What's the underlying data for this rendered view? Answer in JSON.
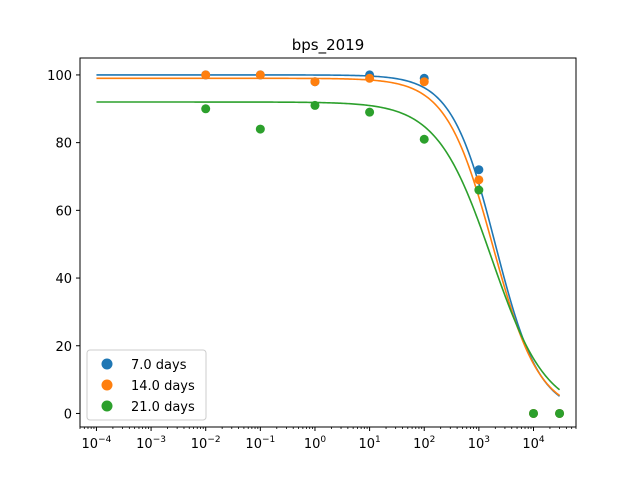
{
  "chart_data": {
    "type": "scatter",
    "title": "bps_2019",
    "xlabel": "",
    "ylabel": "",
    "xscale": "log",
    "xlim": [
      5e-05,
      60000
    ],
    "ylim": [
      -4,
      105
    ],
    "x_ticks": [
      0.0001,
      0.001,
      0.01,
      0.1,
      1,
      10,
      100,
      1000,
      10000
    ],
    "x_tick_labels": [
      {
        "base": "10",
        "exp": "−4"
      },
      {
        "base": "10",
        "exp": "−3"
      },
      {
        "base": "10",
        "exp": "−2"
      },
      {
        "base": "10",
        "exp": "−1"
      },
      {
        "base": "10",
        "exp": "0"
      },
      {
        "base": "10",
        "exp": "1"
      },
      {
        "base": "10",
        "exp": "2"
      },
      {
        "base": "10",
        "exp": "3"
      },
      {
        "base": "10",
        "exp": "4"
      }
    ],
    "y_ticks": [
      0,
      20,
      40,
      60,
      80,
      100
    ],
    "y_tick_labels": [
      "0",
      "20",
      "40",
      "60",
      "80",
      "100"
    ],
    "grid": false,
    "legend_position": "lower-left",
    "series": [
      {
        "name": "7.0 days",
        "color": "#1f77b4",
        "x": [
          0.01,
          0.1,
          1,
          10,
          100,
          1000,
          10000,
          30000
        ],
        "y": [
          100,
          100,
          98,
          100,
          99,
          72,
          0,
          0
        ],
        "fit": {
          "top": 100,
          "bottom": 0,
          "ec50": 2000,
          "hill": 1.08
        }
      },
      {
        "name": "14.0 days",
        "color": "#ff7f0e",
        "x": [
          0.01,
          0.1,
          1,
          10,
          100,
          1000,
          10000,
          30000
        ],
        "y": [
          100,
          100,
          98,
          99,
          98,
          69,
          0,
          0
        ],
        "fit": {
          "top": 99,
          "bottom": 0,
          "ec50": 1800,
          "hill": 1.02
        }
      },
      {
        "name": "21.0 days",
        "color": "#2ca02c",
        "x": [
          0.01,
          0.1,
          1,
          10,
          100,
          1000,
          10000,
          30000
        ],
        "y": [
          90,
          84,
          91,
          89,
          81,
          66,
          0,
          0
        ],
        "fit": {
          "top": 92,
          "bottom": 0,
          "ec50": 1700,
          "hill": 0.87
        }
      }
    ]
  }
}
